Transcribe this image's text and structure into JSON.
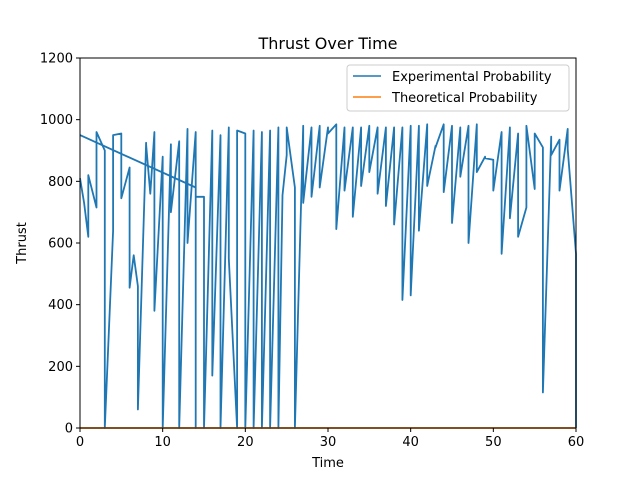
{
  "chart_data": {
    "type": "line",
    "title": "Thrust Over Time",
    "xlabel": "Time",
    "ylabel": "Thrust",
    "xlim": [
      0,
      60
    ],
    "ylim": [
      0,
      1200
    ],
    "xticks": [
      "0",
      "10",
      "20",
      "30",
      "40",
      "50",
      "60"
    ],
    "yticks": [
      "0",
      "200",
      "400",
      "600",
      "800",
      "1000",
      "1200"
    ],
    "grid": false,
    "legend_position": "top-right",
    "series": [
      {
        "name": "Experimental Probability",
        "color": "#1f77b4",
        "x": [
          0,
          0.5,
          1,
          1,
          2,
          2,
          3,
          3,
          4,
          4,
          4,
          5,
          5,
          6,
          6,
          6.5,
          7,
          7,
          8,
          8,
          8.5,
          9,
          9,
          10,
          10,
          11,
          11,
          12,
          12,
          12,
          13,
          13,
          14,
          14,
          14,
          15,
          15,
          16,
          16,
          17,
          17,
          18,
          18,
          19,
          19,
          20,
          20,
          21,
          21,
          21,
          22,
          22,
          23,
          23,
          24,
          24,
          24.5,
          25,
          25,
          26,
          26,
          27,
          27,
          28,
          28,
          29,
          29,
          30,
          30,
          31,
          31,
          32,
          32,
          33,
          33,
          34,
          34,
          35,
          35,
          36,
          36,
          37,
          37,
          38,
          38,
          39,
          39,
          40,
          40,
          41,
          41,
          42,
          42,
          43,
          43,
          44,
          44,
          45,
          45,
          46,
          46,
          47,
          47,
          48,
          48,
          49,
          49,
          50,
          50,
          51,
          51,
          52,
          52,
          53,
          53,
          54,
          54,
          55,
          55,
          56,
          56,
          57,
          57,
          58,
          58,
          59,
          59,
          60,
          60
        ],
        "y": [
          810,
          730,
          620,
          820,
          715,
          960,
          900,
          0,
          640,
          710,
          950,
          955,
          745,
          845,
          455,
          560,
          460,
          60,
          925,
          920,
          760,
          960,
          380,
          880,
          0,
          920,
          700,
          930,
          620,
          0,
          970,
          600,
          960,
          0,
          750,
          750,
          0,
          965,
          170,
          950,
          0,
          975,
          550,
          0,
          965,
          955,
          0,
          965,
          910,
          0,
          960,
          0,
          965,
          0,
          975,
          0,
          755,
          885,
          975,
          780,
          0,
          980,
          730,
          975,
          750,
          980,
          780,
          975,
          955,
          985,
          645,
          975,
          770,
          975,
          685,
          975,
          785,
          980,
          830,
          975,
          760,
          975,
          720,
          975,
          660,
          975,
          415,
          980,
          430,
          980,
          640,
          985,
          785,
          915,
          910,
          985,
          765,
          980,
          665,
          975,
          815,
          980,
          600,
          985,
          830,
          880,
          875,
          870,
          770,
          960,
          565,
          975,
          680,
          955,
          620,
          715,
          980,
          775,
          955,
          910,
          115,
          945,
          885,
          935,
          770,
          970,
          905,
          565,
          0
        ]
      },
      {
        "name": "Theoretical Probability",
        "color": "#ff7f0e",
        "x": [
          0,
          60
        ],
        "y": [
          0,
          0
        ]
      }
    ],
    "extra_segment": {
      "x": [
        0,
        14
      ],
      "y": [
        950,
        780
      ]
    }
  }
}
